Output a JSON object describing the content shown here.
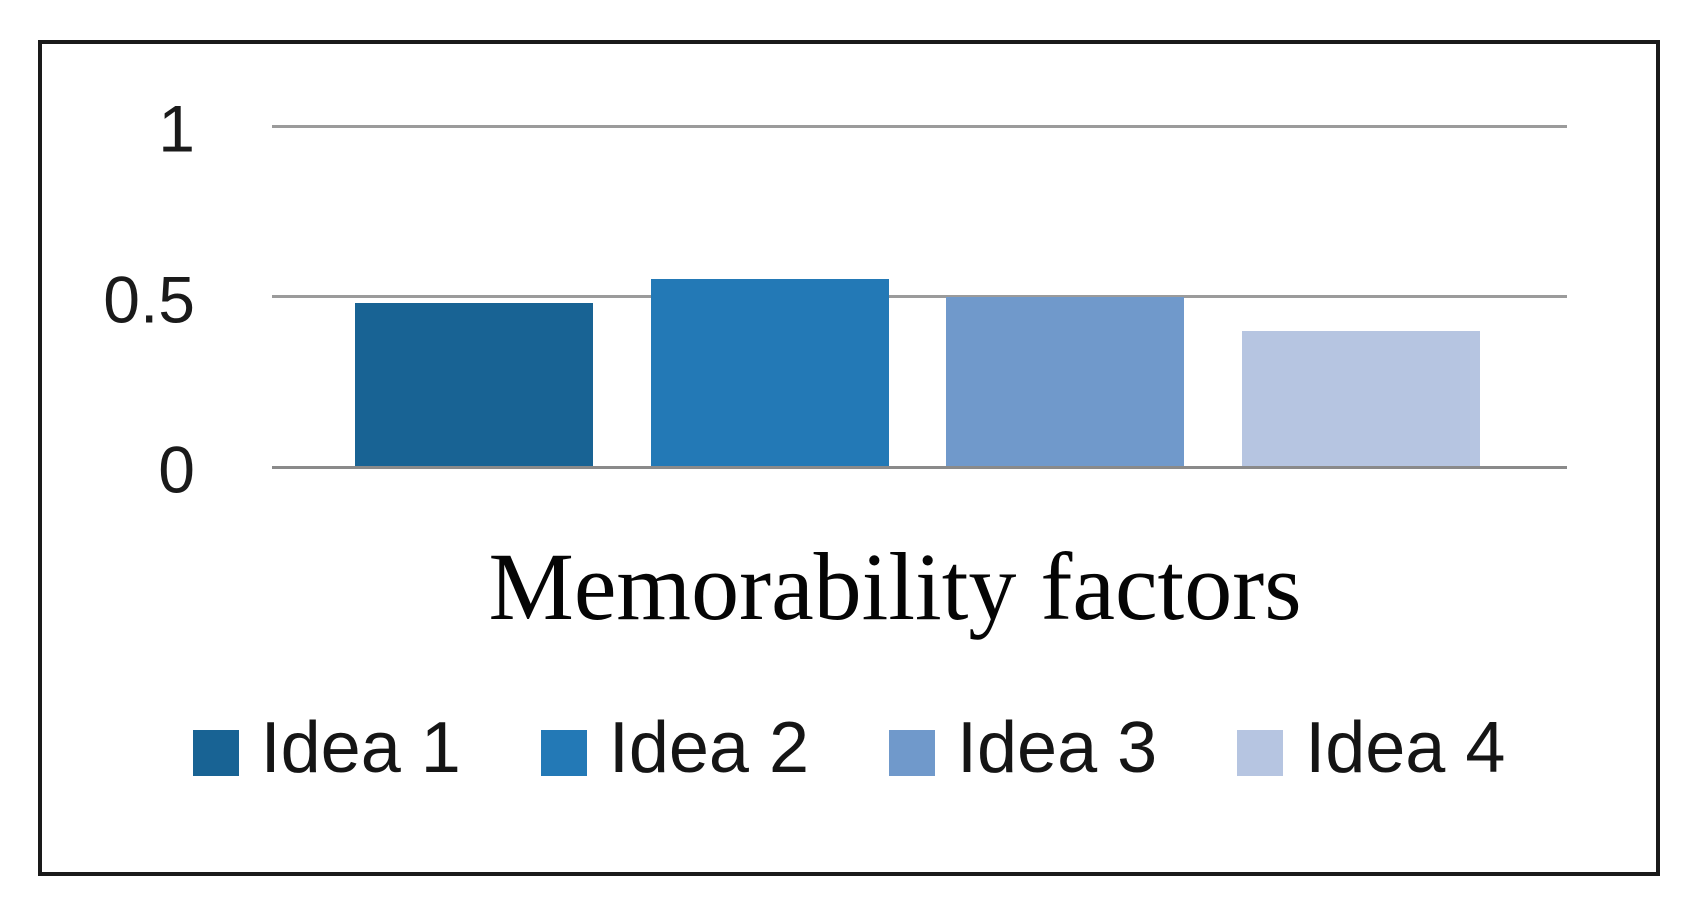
{
  "figure": {
    "background": "#ffffff",
    "border_color": "#1a1a1a",
    "gridline_color": "#9b9b9b",
    "axis_line_color": "#8a8a8a",
    "text_color": "#1a1a1a"
  },
  "chart_data": {
    "type": "bar",
    "title": "Memorability factors",
    "categories": [
      "Idea 1",
      "Idea 2",
      "Idea 3",
      "Idea 4"
    ],
    "values": [
      0.48,
      0.55,
      0.5,
      0.4
    ],
    "series_colors": [
      "#186394",
      "#2379b6",
      "#7099cb",
      "#b6c5e1"
    ],
    "ylim": [
      0,
      1
    ],
    "yticks": [
      0,
      0.5,
      1
    ],
    "ytick_labels": [
      "0",
      "0.5",
      "1"
    ],
    "xlabel": "",
    "ylabel": "",
    "grid": "horizontal-only",
    "legend_position": "bottom",
    "legend_labels": [
      "Idea 1",
      "Idea 2",
      "Idea 3",
      "Idea 4"
    ]
  }
}
